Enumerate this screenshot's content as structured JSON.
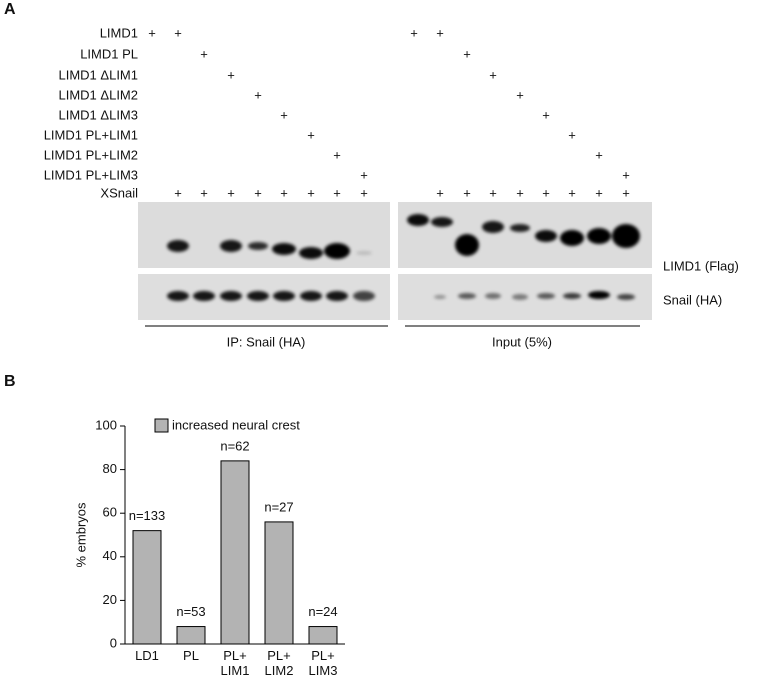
{
  "panel_a": {
    "label": "A",
    "rows": [
      {
        "label": "LIMD1",
        "left": [
          "+",
          "+",
          null,
          null,
          null,
          null,
          null,
          null,
          null
        ],
        "right": [
          "+",
          "+",
          null,
          null,
          null,
          null,
          null,
          null,
          null
        ]
      },
      {
        "label": "LIMD1 PL",
        "left": [
          null,
          null,
          "+",
          null,
          null,
          null,
          null,
          null,
          null
        ],
        "right": [
          null,
          null,
          "+",
          null,
          null,
          null,
          null,
          null,
          null
        ]
      },
      {
        "label": "LIMD1 ΔLIM1",
        "left": [
          null,
          null,
          null,
          "+",
          null,
          null,
          null,
          null,
          null
        ],
        "right": [
          null,
          null,
          null,
          "+",
          null,
          null,
          null,
          null,
          null
        ]
      },
      {
        "label": "LIMD1 ΔLIM2",
        "left": [
          null,
          null,
          null,
          null,
          "+",
          null,
          null,
          null,
          null
        ],
        "right": [
          null,
          null,
          null,
          null,
          "+",
          null,
          null,
          null,
          null
        ]
      },
      {
        "label": "LIMD1 ΔLIM3",
        "left": [
          null,
          null,
          null,
          null,
          null,
          "+",
          null,
          null,
          null
        ],
        "right": [
          null,
          null,
          null,
          null,
          null,
          "+",
          null,
          null,
          null
        ]
      },
      {
        "label": "LIMD1 PL+LIM1",
        "left": [
          null,
          null,
          null,
          null,
          null,
          null,
          "+",
          null,
          null
        ],
        "right": [
          null,
          null,
          null,
          null,
          null,
          null,
          "+",
          null,
          null
        ]
      },
      {
        "label": "LIMD1 PL+LIM2",
        "left": [
          null,
          null,
          null,
          null,
          null,
          null,
          null,
          "+",
          null
        ],
        "right": [
          null,
          null,
          null,
          null,
          null,
          null,
          null,
          "+",
          null
        ]
      },
      {
        "label": "LIMD1 PL+LIM3",
        "left": [
          null,
          null,
          null,
          null,
          null,
          null,
          null,
          null,
          "+"
        ],
        "right": [
          null,
          null,
          null,
          null,
          null,
          null,
          null,
          null,
          "+"
        ]
      },
      {
        "label": "XSnail",
        "left": [
          null,
          "+",
          "+",
          "+",
          "+",
          "+",
          "+",
          "+",
          "+"
        ],
        "right": [
          null,
          "+",
          "+",
          "+",
          "+",
          "+",
          "+",
          "+",
          "+"
        ]
      }
    ],
    "blot_labels": [
      "LIMD1 (Flag)",
      "Snail (HA)"
    ],
    "group_labels": [
      "IP: Snail (HA)",
      "Input (5%)"
    ]
  },
  "panel_b": {
    "label": "B"
  },
  "chart_data": {
    "type": "bar",
    "ylabel": "% embryos",
    "categories": [
      "LD1",
      "PL",
      "PL+\nLIM1",
      "PL+\nLIM2",
      "PL+\nLIM3"
    ],
    "series": [
      {
        "name": "increased neural crest",
        "color": "#b3b3b3",
        "values": [
          52,
          8,
          84,
          56,
          8
        ]
      }
    ],
    "bar_labels": [
      "n=133",
      "n=53",
      "n=62",
      "n=27",
      "n=24"
    ],
    "ylim": [
      0,
      100
    ],
    "yticks": [
      0,
      20,
      40,
      60,
      80,
      100
    ],
    "grid": false,
    "legend": "top"
  }
}
